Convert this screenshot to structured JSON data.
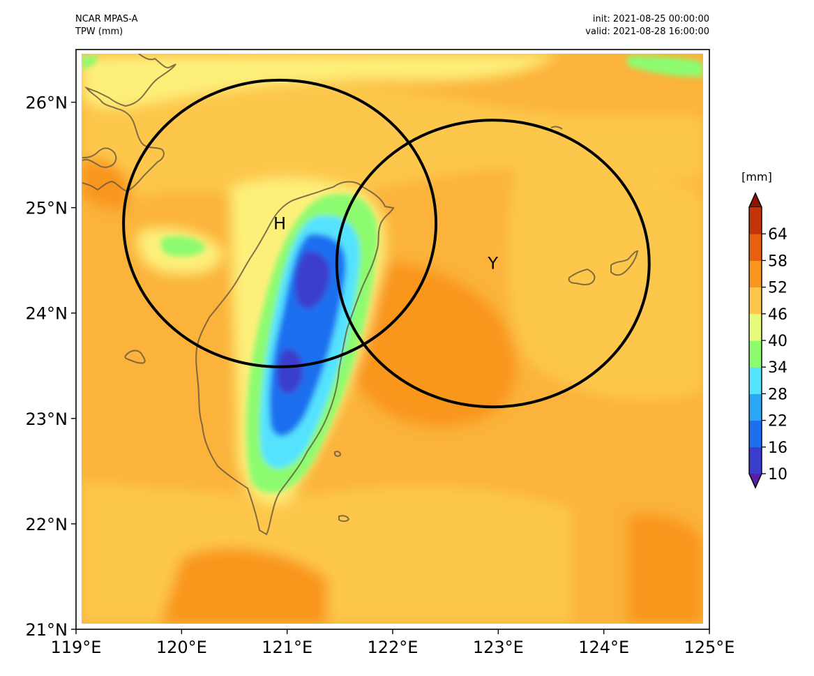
{
  "header": {
    "model": "NCAR MPAS-A",
    "field": "TPW (mm)",
    "init": "init: 2021-08-25 00:00:00",
    "valid": "valid: 2021-08-28 16:00:00"
  },
  "map": {
    "lon_range": [
      119,
      125
    ],
    "lat_range": [
      21,
      26.5
    ],
    "lon_ticks": [
      119,
      120,
      121,
      122,
      123,
      124,
      125
    ],
    "lon_labels": [
      "119°E",
      "120°E",
      "121°E",
      "122°E",
      "123°E",
      "124°E",
      "125°E"
    ],
    "lat_ticks": [
      21,
      22,
      23,
      24,
      25,
      26
    ],
    "lat_labels": [
      "21°N",
      "22°N",
      "23°N",
      "24°N",
      "25°N",
      "26°N"
    ],
    "circles": [
      {
        "label": "H",
        "lon": 120.93,
        "lat": 24.85,
        "r_lon": 1.48,
        "r_lat": 1.36
      },
      {
        "label": "Y",
        "lon": 122.95,
        "lat": 24.47,
        "r_lon": 1.48,
        "r_lat": 1.36
      }
    ],
    "colors": {
      "base": "#fbb33c",
      "lighter": "#fdc74c",
      "darker": "#f9961e",
      "yellow": "#fdf07a",
      "green": "#8dfb70",
      "cyan": "#54e2ff",
      "blue": "#1d6ff0",
      "deep": "#3a3ccc",
      "coast": "#6b5a3e"
    }
  },
  "colorbar": {
    "unit": "[mm]",
    "ticks": [
      10,
      16,
      22,
      28,
      34,
      40,
      46,
      52,
      58,
      64
    ],
    "labels": [
      "10",
      "16",
      "22",
      "28",
      "34",
      "40",
      "46",
      "52",
      "58",
      "64"
    ],
    "range": [
      10,
      70
    ],
    "colors": [
      "#5b1ea6",
      "#3a3ccc",
      "#1d6ff0",
      "#2ba6f5",
      "#54e2ff",
      "#8dfb70",
      "#e9fb7c",
      "#fdc74c",
      "#f9961e",
      "#e76010",
      "#c33408",
      "#8c1402"
    ]
  }
}
